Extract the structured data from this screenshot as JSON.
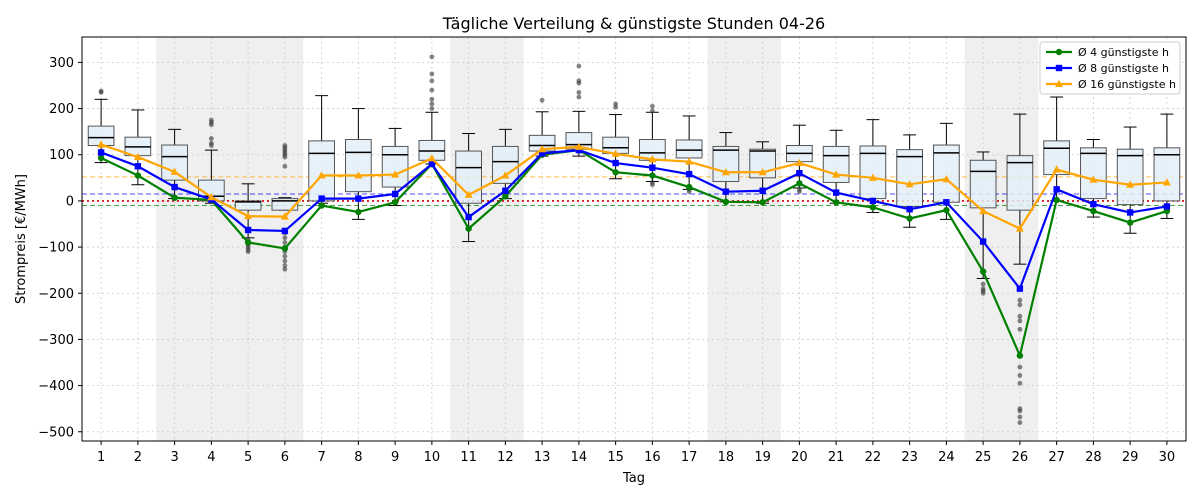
{
  "chart_data": {
    "type": "box",
    "title": "Tägliche Verteilung & günstigste Stunden 04-26",
    "xlabel": "Tag",
    "ylabel": "Strompreis [€/MWh]",
    "ylim": [
      -520,
      355
    ],
    "yticks": [
      -500,
      -400,
      -300,
      -200,
      -100,
      0,
      100,
      200,
      300
    ],
    "grid": true,
    "legend_position": "top-right",
    "categories": [
      "1",
      "2",
      "3",
      "4",
      "5",
      "6",
      "7",
      "8",
      "9",
      "10",
      "11",
      "12",
      "13",
      "14",
      "15",
      "16",
      "17",
      "18",
      "19",
      "20",
      "21",
      "22",
      "23",
      "24",
      "25",
      "26",
      "27",
      "28",
      "29",
      "30"
    ],
    "weekend_days": [
      3,
      4,
      5,
      6,
      11,
      12,
      18,
      19,
      25,
      26
    ],
    "boxes": [
      {
        "q1": 120,
        "median": 137,
        "q3": 162,
        "wlow": 83,
        "whigh": 220
      },
      {
        "q1": 98,
        "median": 117,
        "q3": 138,
        "wlow": 35,
        "whigh": 197
      },
      {
        "q1": 45,
        "median": 96,
        "q3": 121,
        "wlow": 5,
        "whigh": 155
      },
      {
        "q1": 0,
        "median": 10,
        "q3": 45,
        "wlow": -5,
        "whigh": 110
      },
      {
        "q1": -20,
        "median": -2,
        "q3": 0,
        "wlow": -80,
        "whigh": 37
      },
      {
        "q1": -20,
        "median": 0,
        "q3": 5,
        "wlow": -20,
        "whigh": 7
      },
      {
        "q1": 0,
        "median": 103,
        "q3": 130,
        "wlow": -5,
        "whigh": 228
      },
      {
        "q1": 20,
        "median": 105,
        "q3": 133,
        "wlow": -40,
        "whigh": 200
      },
      {
        "q1": 30,
        "median": 100,
        "q3": 118,
        "wlow": -10,
        "whigh": 157
      },
      {
        "q1": 88,
        "median": 108,
        "q3": 131,
        "wlow": 80,
        "whigh": 192
      },
      {
        "q1": -5,
        "median": 72,
        "q3": 108,
        "wlow": -88,
        "whigh": 146
      },
      {
        "q1": 38,
        "median": 85,
        "q3": 118,
        "wlow": 5,
        "whigh": 155
      },
      {
        "q1": 108,
        "median": 120,
        "q3": 142,
        "wlow": 97,
        "whigh": 193
      },
      {
        "q1": 112,
        "median": 122,
        "q3": 148,
        "wlow": 97,
        "whigh": 194
      },
      {
        "q1": 103,
        "median": 115,
        "q3": 138,
        "wlow": 48,
        "whigh": 187
      },
      {
        "q1": 88,
        "median": 104,
        "q3": 133,
        "wlow": 42,
        "whigh": 192
      },
      {
        "q1": 93,
        "median": 110,
        "q3": 132,
        "wlow": 25,
        "whigh": 184
      },
      {
        "q1": 42,
        "median": 110,
        "q3": 118,
        "wlow": -2,
        "whigh": 148
      },
      {
        "q1": 50,
        "median": 108,
        "q3": 112,
        "wlow": -5,
        "whigh": 128
      },
      {
        "q1": 85,
        "median": 103,
        "q3": 120,
        "wlow": 28,
        "whigh": 164
      },
      {
        "q1": 40,
        "median": 98,
        "q3": 118,
        "wlow": -5,
        "whigh": 153
      },
      {
        "q1": 5,
        "median": 103,
        "q3": 119,
        "wlow": -25,
        "whigh": 176
      },
      {
        "q1": -12,
        "median": 96,
        "q3": 111,
        "wlow": -57,
        "whigh": 143
      },
      {
        "q1": -3,
        "median": 104,
        "q3": 121,
        "wlow": -40,
        "whigh": 168
      },
      {
        "q1": -15,
        "median": 64,
        "q3": 88,
        "wlow": -168,
        "whigh": 106
      },
      {
        "q1": -20,
        "median": 83,
        "q3": 98,
        "wlow": -137,
        "whigh": 188
      },
      {
        "q1": 57,
        "median": 114,
        "q3": 130,
        "wlow": 0,
        "whigh": 225
      },
      {
        "q1": 5,
        "median": 103,
        "q3": 115,
        "wlow": -35,
        "whigh": 133
      },
      {
        "q1": -8,
        "median": 98,
        "q3": 112,
        "wlow": -70,
        "whigh": 160
      },
      {
        "q1": 0,
        "median": 100,
        "q3": 115,
        "wlow": -38,
        "whigh": 188
      }
    ],
    "outliers": [
      {
        "day": 1,
        "values": [
          235,
          238
        ]
      },
      {
        "day": 4,
        "values": [
          120,
          125,
          135,
          165,
          170,
          175
        ]
      },
      {
        "day": 5,
        "values": [
          -85,
          -95,
          -100,
          -105,
          -110
        ]
      },
      {
        "day": 6,
        "values": [
          75,
          95,
          100,
          105,
          110,
          115,
          120,
          -70,
          -80,
          -90,
          -100,
          -110,
          -120,
          -130,
          -140,
          -148
        ]
      },
      {
        "day": 10,
        "values": [
          200,
          210,
          220,
          240,
          260,
          275,
          312
        ]
      },
      {
        "day": 13,
        "values": [
          218
        ]
      },
      {
        "day": 14,
        "values": [
          225,
          235,
          255,
          260,
          292
        ]
      },
      {
        "day": 15,
        "values": [
          203,
          210
        ]
      },
      {
        "day": 16,
        "values": [
          35,
          40,
          195,
          205
        ]
      },
      {
        "day": 17,
        "values": [
          20,
          25
        ]
      },
      {
        "day": 20,
        "values": [
          20,
          25
        ]
      },
      {
        "day": 25,
        "values": [
          -180,
          -190,
          -195,
          -200
        ]
      },
      {
        "day": 26,
        "values": [
          -215,
          -225,
          -250,
          -260,
          -278,
          -360,
          -378,
          -395,
          -450,
          -455,
          -468,
          -480
        ]
      }
    ],
    "series": [
      {
        "name": "Ø 4 günstigste h",
        "color": "#008000",
        "marker": "circle",
        "values": [
          93,
          55,
          7,
          2,
          -90,
          -103,
          -10,
          -24,
          -3,
          80,
          -60,
          10,
          100,
          110,
          62,
          55,
          30,
          -2,
          -3,
          38,
          -3,
          -14,
          -38,
          -20,
          -153,
          -335,
          2,
          -22,
          -47,
          -22
        ]
      },
      {
        "name": "Ø 8 günstigste h",
        "color": "#0000ff",
        "marker": "square",
        "values": [
          105,
          75,
          30,
          3,
          -63,
          -65,
          5,
          5,
          15,
          80,
          -35,
          22,
          103,
          110,
          82,
          72,
          58,
          20,
          22,
          60,
          18,
          0,
          -18,
          -3,
          -88,
          -190,
          25,
          -7,
          -25,
          -12
        ]
      },
      {
        "name": "Ø 16 günstigste h",
        "color": "#ffa500",
        "marker": "triangle",
        "values": [
          122,
          95,
          63,
          8,
          -33,
          -34,
          55,
          55,
          57,
          92,
          13,
          55,
          112,
          117,
          102,
          90,
          85,
          62,
          62,
          82,
          57,
          50,
          36,
          47,
          -22,
          -60,
          68,
          46,
          35,
          40
        ]
      }
    ],
    "reference_lines": [
      {
        "value": 52,
        "color": "#ffa500"
      },
      {
        "value": 15,
        "color": "#0000ff"
      },
      {
        "value": 0,
        "color": "#d00000"
      },
      {
        "value": -10,
        "color": "#008000"
      }
    ]
  }
}
